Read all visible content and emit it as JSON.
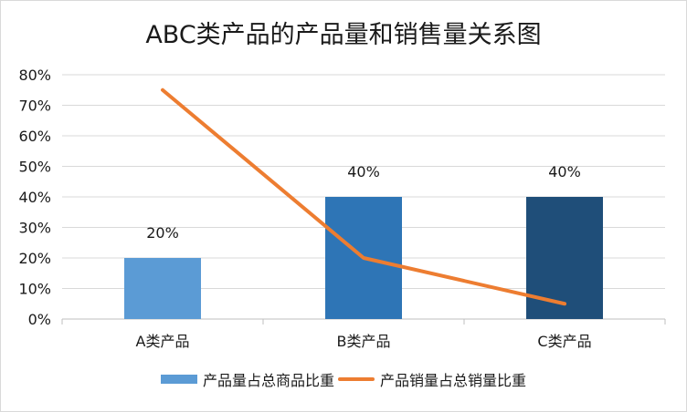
{
  "chart_data": {
    "type": "bar",
    "title": "ABC类产品的产品量和销售量关系图",
    "categories": [
      "A类产品",
      "B类产品",
      "C类产品"
    ],
    "series": [
      {
        "name": "产品量占总商品比重",
        "type": "bar",
        "values": [
          0.2,
          0.4,
          0.4
        ],
        "labels": [
          "20%",
          "40%",
          "40%"
        ],
        "colors": [
          "#5b9bd5",
          "#2e75b6",
          "#1f4e79"
        ]
      },
      {
        "name": "产品销量占总销量比重",
        "type": "line",
        "values": [
          0.75,
          0.2,
          0.05
        ],
        "color": "#ed7d31"
      }
    ],
    "ylim": [
      0,
      0.8
    ],
    "yticks": [
      "0%",
      "10%",
      "20%",
      "30%",
      "40%",
      "50%",
      "60%",
      "70%",
      "80%"
    ],
    "grid": true,
    "legend_position": "bottom"
  }
}
